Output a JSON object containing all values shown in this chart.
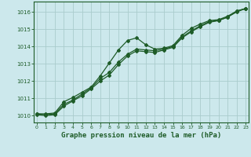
{
  "xlabel": "Graphe pression niveau de la mer (hPa)",
  "background_color": "#cce8ec",
  "grid_color": "#aacccc",
  "line_color": "#1e5c28",
  "x_ticks": [
    0,
    1,
    2,
    3,
    4,
    5,
    6,
    7,
    8,
    9,
    10,
    11,
    12,
    13,
    14,
    15,
    16,
    17,
    18,
    19,
    20,
    21,
    22,
    23
  ],
  "y_ticks": [
    1010,
    1011,
    1012,
    1013,
    1014,
    1015,
    1016
  ],
  "ylim": [
    1009.6,
    1016.6
  ],
  "xlim": [
    -0.3,
    23.3
  ],
  "series": [
    [
      1010.1,
      1010.1,
      1010.15,
      1010.8,
      1011.05,
      1011.35,
      1011.65,
      1012.3,
      1013.05,
      1013.8,
      1014.35,
      1014.5,
      1014.1,
      1013.85,
      1013.9,
      1014.05,
      1014.65,
      1015.05,
      1015.3,
      1015.5,
      1015.55,
      1015.75,
      1016.05,
      1016.2
    ],
    [
      1010.1,
      1010.05,
      1010.1,
      1010.65,
      1010.9,
      1011.25,
      1011.6,
      1012.15,
      1012.5,
      1013.1,
      1013.55,
      1013.85,
      1013.8,
      1013.75,
      1013.85,
      1014.0,
      1014.55,
      1014.9,
      1015.2,
      1015.45,
      1015.5,
      1015.7,
      1016.05,
      1016.2
    ],
    [
      1010.05,
      1010.0,
      1010.05,
      1010.55,
      1010.85,
      1011.15,
      1011.55,
      1012.0,
      1012.35,
      1012.95,
      1013.45,
      1013.75,
      1013.7,
      1013.65,
      1013.8,
      1013.95,
      1014.5,
      1014.85,
      1015.15,
      1015.4,
      1015.5,
      1015.7,
      1016.0,
      1016.2
    ]
  ]
}
